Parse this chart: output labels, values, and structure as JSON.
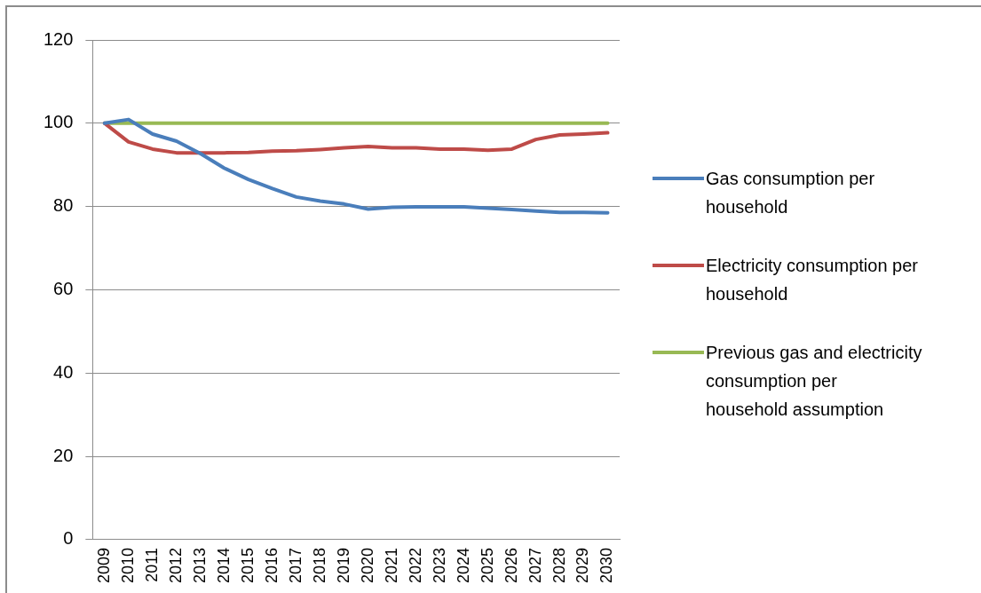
{
  "chart_data": {
    "type": "line",
    "categories": [
      "2009",
      "2010",
      "2011",
      "2012",
      "2013",
      "2014",
      "2015",
      "2016",
      "2017",
      "2018",
      "2019",
      "2020",
      "2021",
      "2022",
      "2023",
      "2024",
      "2025",
      "2026",
      "2027",
      "2028",
      "2029",
      "2030"
    ],
    "series": [
      {
        "name": "Gas consumption per household",
        "color": "#4a7ebb",
        "values": [
          100,
          100.9,
          97.4,
          95.7,
          92.7,
          89.2,
          86.5,
          84.3,
          82.3,
          81.3,
          80.6,
          79.4,
          79.8,
          79.9,
          79.9,
          79.9,
          79.6,
          79.3,
          78.9,
          78.6,
          78.6,
          78.5
        ]
      },
      {
        "name": "Electricity consumption per household",
        "color": "#be4b48",
        "values": [
          100,
          95.5,
          93.8,
          92.9,
          92.9,
          92.9,
          93,
          93.3,
          93.4,
          93.7,
          94.1,
          94.4,
          94.1,
          94.1,
          93.8,
          93.8,
          93.5,
          93.8,
          96.1,
          97.2,
          97.4,
          97.7
        ]
      },
      {
        "name": "Previous gas and electricity consumption per household assumption",
        "color": "#98b954",
        "values": [
          100,
          100,
          100,
          100,
          100,
          100,
          100,
          100,
          100,
          100,
          100,
          100,
          100,
          100,
          100,
          100,
          100,
          100,
          100,
          100,
          100,
          100
        ]
      }
    ],
    "ylim": [
      0,
      120
    ],
    "yticks": [
      0,
      20,
      40,
      60,
      80,
      100,
      120
    ],
    "grid": "y",
    "legend": "right",
    "marker": "none",
    "line_style": "solid"
  }
}
